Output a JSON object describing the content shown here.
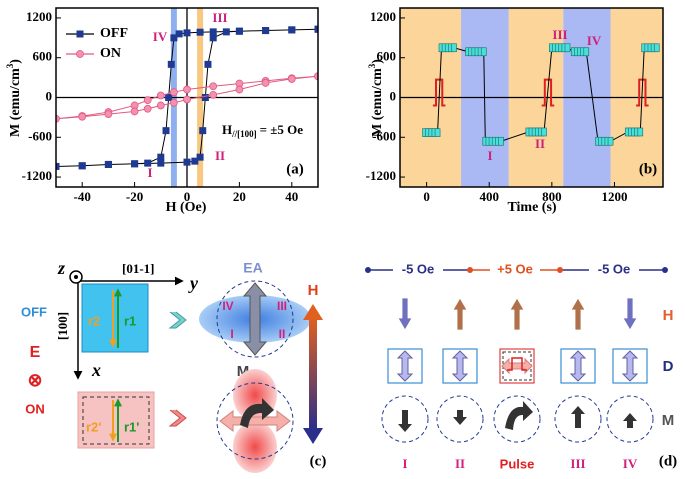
{
  "chart_data": [
    {
      "type": "line",
      "panel_label": "(a)",
      "x_label": "H (Oe)",
      "y_label": {
        "text": "M (emu/cm",
        "sup": "3",
        "end": ")"
      },
      "xlim": [
        -50,
        50
      ],
      "ylim": [
        -1350,
        1350
      ],
      "xticks": [
        -40,
        -20,
        0,
        20,
        40
      ],
      "yticks": [
        -1200,
        -600,
        0,
        600,
        1200
      ],
      "legend": "upper left",
      "bands": [
        {
          "x": -5,
          "color": "#8fb0f0"
        },
        {
          "x": 5,
          "color": "#f8c880"
        }
      ],
      "annotations": [
        "IV",
        "III",
        "I",
        "II"
      ],
      "field_label": {
        "symbol": "H",
        "subscript": "//[100]",
        "value": "= ±5 Oe"
      },
      "series": [
        {
          "name": "OFF",
          "color": "#1f3a93",
          "line_color": "#000000",
          "marker": "square",
          "x": [
            50,
            40,
            30,
            20,
            10,
            5,
            0,
            -3,
            -5,
            -6,
            -7,
            -8,
            -10,
            -15,
            -20,
            -30,
            -40,
            -50,
            -40,
            -30,
            -20,
            -10,
            0,
            3,
            5,
            6,
            7,
            8,
            10,
            15,
            20,
            30,
            40,
            50
          ],
          "values": [
            1030,
            1020,
            1010,
            1000,
            990,
            985,
            975,
            960,
            900,
            500,
            0,
            -500,
            -900,
            -990,
            -1000,
            -1010,
            -1030,
            -1040,
            -1030,
            -1010,
            -1000,
            -990,
            -975,
            -960,
            -900,
            -500,
            0,
            500,
            900,
            990,
            1000,
            1010,
            1020,
            1030
          ]
        },
        {
          "name": "ON",
          "color": "#f490b0",
          "line_color": "#e05a80",
          "marker": "circle",
          "x": [
            50,
            40,
            30,
            20,
            10,
            0,
            -5,
            -10,
            -15,
            -20,
            -30,
            -40,
            -50,
            -40,
            -30,
            -20,
            -15,
            -10,
            -5,
            0,
            10,
            20,
            30,
            40,
            50
          ],
          "values": [
            320,
            290,
            250,
            210,
            170,
            120,
            80,
            30,
            -40,
            -120,
            -220,
            -280,
            -320,
            -290,
            -250,
            -210,
            -170,
            -120,
            -80,
            -30,
            40,
            120,
            220,
            280,
            320
          ]
        }
      ]
    },
    {
      "type": "line",
      "panel_label": "(b)",
      "x_label": "Time (s)",
      "y_label": {
        "text": "M (emu/cm",
        "sup": "3",
        "end": ")"
      },
      "xlim": [
        -170,
        1510
      ],
      "ylim": [
        -1350,
        1350
      ],
      "xticks": [
        0,
        400,
        800,
        1200
      ],
      "yticks": [
        -1200,
        -600,
        0,
        600,
        1200
      ],
      "bands": [
        {
          "from": -170,
          "to": 220,
          "color": "#fbd59a"
        },
        {
          "from": 220,
          "to": 525,
          "color": "#aab8f4"
        },
        {
          "from": 525,
          "to": 873,
          "color": "#fbd59a"
        },
        {
          "from": 873,
          "to": 1175,
          "color": "#aab8f4"
        },
        {
          "from": 1175,
          "to": 1510,
          "color": "#fbd59a"
        }
      ],
      "annotations": [
        "I",
        "II",
        "III",
        "IV"
      ],
      "pulses": {
        "t": [
          80,
          775,
          1378
        ],
        "low": -120,
        "high": 270,
        "width": 40,
        "color": "#e02020"
      },
      "series": [
        {
          "name": "M",
          "color": "#48e0d8",
          "line_color": "#000000",
          "marker": "block",
          "x": [
            -10,
            10,
            30,
            50,
            70,
            95,
            115,
            135,
            155,
            175,
            265,
            285,
            305,
            325,
            345,
            365,
            375,
            395,
            415,
            435,
            455,
            475,
            650,
            670,
            690,
            710,
            730,
            750,
            800,
            820,
            840,
            860,
            880,
            900,
            940,
            960,
            980,
            1000,
            1020,
            1095,
            1115,
            1135,
            1155,
            1175,
            1285,
            1305,
            1325,
            1345,
            1365,
            1390,
            1410,
            1430,
            1450,
            1470
          ],
          "values": [
            -530,
            -530,
            -530,
            -530,
            -530,
            750,
            750,
            750,
            750,
            750,
            690,
            690,
            690,
            690,
            690,
            690,
            -660,
            -660,
            -660,
            -660,
            -660,
            -660,
            -520,
            -520,
            -520,
            -520,
            -520,
            -520,
            750,
            750,
            750,
            750,
            750,
            750,
            690,
            690,
            690,
            690,
            690,
            -660,
            -660,
            -660,
            -660,
            -660,
            -520,
            -520,
            -520,
            -520,
            -520,
            750,
            750,
            750,
            750,
            750
          ]
        }
      ]
    }
  ],
  "diagram_c": {
    "axes": {
      "z": "z",
      "y_dir": "[01-1]",
      "y": "y",
      "x_dir": "[100]",
      "x": "x"
    },
    "off": "OFF",
    "field": "E",
    "field_symbol": "⊗",
    "on": "ON",
    "regions_off": [
      "r2",
      "r1"
    ],
    "regions_on": [
      "r2'",
      "r1'"
    ],
    "easy_axis": "EA",
    "quadrants": [
      "IV",
      "III",
      "I",
      "II"
    ],
    "m_label": "M",
    "h_label": "H",
    "panel_label": "(c)"
  },
  "diagram_d": {
    "field_sequence": [
      "-5 Oe",
      "+5 Oe",
      "-5 Oe"
    ],
    "row_labels": [
      "H",
      "D",
      "M"
    ],
    "states": [
      "I",
      "II",
      "Pulse",
      "III",
      "IV"
    ],
    "panel_label": "(d)"
  }
}
